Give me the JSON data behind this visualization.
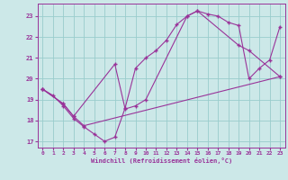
{
  "xlabel": "Windchill (Refroidissement éolien,°C)",
  "xlim": [
    -0.5,
    23.5
  ],
  "ylim": [
    16.7,
    23.6
  ],
  "xticks": [
    0,
    1,
    2,
    3,
    4,
    5,
    6,
    7,
    8,
    9,
    10,
    11,
    12,
    13,
    14,
    15,
    16,
    17,
    18,
    19,
    20,
    21,
    22,
    23
  ],
  "yticks": [
    17,
    18,
    19,
    20,
    21,
    22,
    23
  ],
  "bg_color": "#cce8e8",
  "grid_color": "#99cccc",
  "line_color": "#993399",
  "line1_x": [
    0,
    1,
    2,
    3,
    4,
    5,
    6,
    7,
    8,
    9,
    10,
    11,
    12,
    13,
    14,
    15,
    16,
    17,
    18,
    19,
    20,
    21,
    22,
    23
  ],
  "line1_y": [
    19.5,
    19.2,
    18.7,
    18.1,
    17.7,
    17.35,
    17.0,
    17.2,
    18.6,
    20.5,
    21.0,
    21.35,
    21.85,
    22.6,
    23.0,
    23.25,
    23.1,
    23.0,
    22.7,
    22.55,
    20.0,
    20.5,
    20.9,
    22.5
  ],
  "line2_x": [
    0,
    2,
    3,
    7,
    8,
    9,
    10,
    14,
    15,
    19,
    20,
    23
  ],
  "line2_y": [
    19.5,
    18.8,
    18.2,
    20.7,
    18.55,
    18.7,
    19.0,
    23.0,
    23.25,
    21.6,
    21.35,
    20.1
  ],
  "line3_x": [
    0,
    2,
    3,
    4,
    23
  ],
  "line3_y": [
    19.5,
    18.8,
    18.2,
    17.75,
    20.1
  ]
}
